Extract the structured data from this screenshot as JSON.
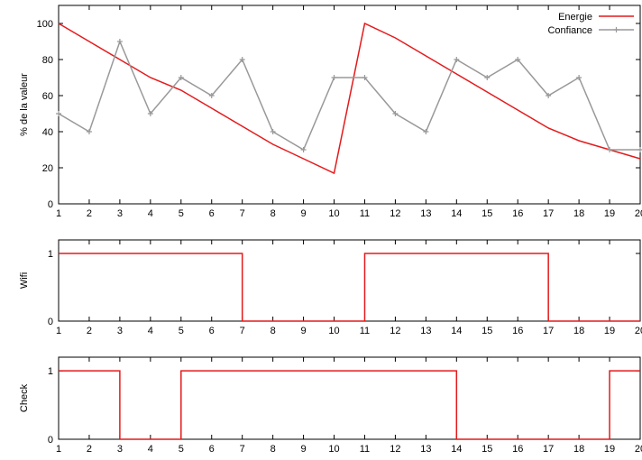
{
  "chart_data": [
    {
      "type": "line",
      "ylabel": "% de la valeur",
      "x": [
        1,
        2,
        3,
        4,
        5,
        6,
        7,
        8,
        9,
        10,
        11,
        12,
        13,
        14,
        15,
        16,
        17,
        18,
        19,
        20
      ],
      "xticks": [
        "1",
        "2",
        "3",
        "4",
        "5",
        "6",
        "7",
        "8",
        "9",
        "10",
        "11",
        "12",
        "13",
        "14",
        "15",
        "16",
        "17",
        "18",
        "19",
        "20"
      ],
      "ylim": [
        0,
        110
      ],
      "yticks": [
        0,
        20,
        40,
        60,
        80,
        100
      ],
      "legend_position": "top-right",
      "series": [
        {
          "name": "Energie",
          "color": "#e41a1c",
          "marker": "none",
          "values": [
            100,
            90,
            80,
            70,
            63,
            53,
            43,
            33,
            25,
            17,
            100,
            92,
            82,
            72,
            62,
            52,
            42,
            35,
            30,
            25
          ]
        },
        {
          "name": "Confiance",
          "color": "#999999",
          "marker": "plus",
          "values": [
            50,
            40,
            90,
            50,
            70,
            60,
            80,
            40,
            30,
            70,
            70,
            50,
            40,
            80,
            70,
            80,
            60,
            70,
            30,
            30
          ]
        }
      ]
    },
    {
      "type": "line",
      "step": true,
      "ylabel": "Wifi",
      "x": [
        1,
        2,
        3,
        4,
        5,
        6,
        7,
        8,
        9,
        10,
        11,
        12,
        13,
        14,
        15,
        16,
        17,
        18,
        19,
        20
      ],
      "xticks": [
        "1",
        "2",
        "3",
        "4",
        "5",
        "6",
        "7",
        "8",
        "9",
        "10",
        "11",
        "12",
        "13",
        "14",
        "15",
        "16",
        "17",
        "18",
        "19",
        "20"
      ],
      "ylim": [
        0,
        1.2
      ],
      "yticks": [
        0,
        1
      ],
      "series": [
        {
          "color": "#e41a1c",
          "values": [
            1,
            1,
            1,
            1,
            1,
            1,
            0,
            0,
            0,
            0,
            1,
            1,
            1,
            1,
            1,
            1,
            0,
            0,
            0,
            0
          ]
        }
      ]
    },
    {
      "type": "line",
      "step": true,
      "ylabel": "Check",
      "x": [
        1,
        2,
        3,
        4,
        5,
        6,
        7,
        8,
        9,
        10,
        11,
        12,
        13,
        14,
        15,
        16,
        17,
        18,
        19,
        20
      ],
      "xticks": [
        "1",
        "2",
        "3",
        "4",
        "5",
        "6",
        "7",
        "8",
        "9",
        "10",
        "11",
        "12",
        "13",
        "14",
        "15",
        "16",
        "17",
        "18",
        "19",
        "20"
      ],
      "ylim": [
        0,
        1.2
      ],
      "yticks": [
        0,
        1
      ],
      "series": [
        {
          "color": "#e41a1c",
          "values": [
            1,
            1,
            0,
            0,
            1,
            1,
            1,
            1,
            1,
            1,
            1,
            1,
            1,
            0,
            0,
            0,
            0,
            0,
            1,
            1
          ]
        }
      ]
    }
  ]
}
